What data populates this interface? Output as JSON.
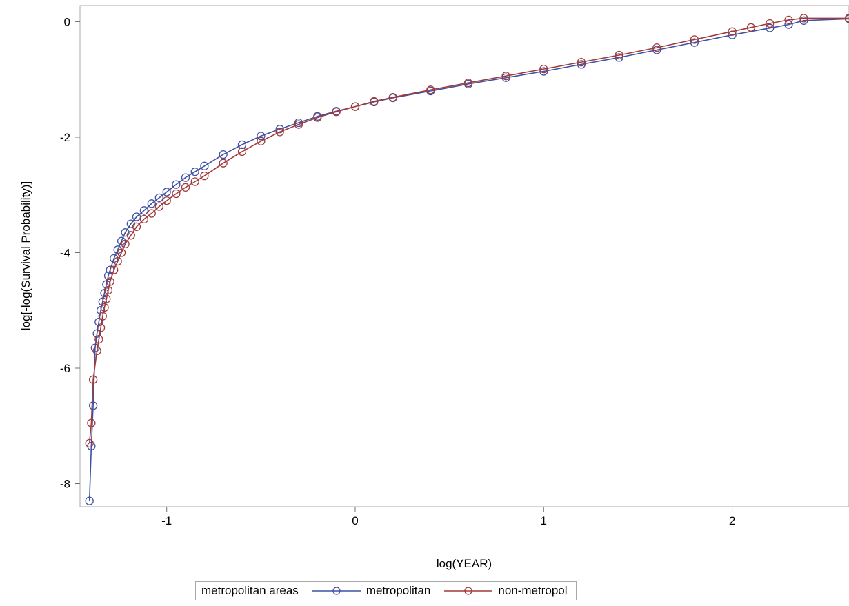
{
  "chart_data": {
    "type": "line",
    "xlabel": "log(YEAR)",
    "ylabel": "log[-log(Survival Probability)]",
    "xlim": [
      -1.46,
      2.62
    ],
    "ylim": [
      -8.4,
      0.28
    ],
    "xticks": [
      -1,
      0,
      1,
      2
    ],
    "yticks": [
      0,
      -2,
      -4,
      -6,
      -8
    ],
    "xtick_labels": [
      "-1",
      "0",
      "1",
      "2"
    ],
    "ytick_labels": [
      "0",
      "-2",
      "-4",
      "-6",
      "-8"
    ],
    "grid": false,
    "legend": {
      "position": "bottom",
      "title": "metropolitan areas"
    },
    "series": [
      {
        "name": "metropolitan",
        "color": "#3f51a3",
        "marker": "open-circle",
        "x": [
          -1.41,
          -1.4,
          -1.39,
          -1.38,
          -1.37,
          -1.36,
          -1.35,
          -1.34,
          -1.33,
          -1.32,
          -1.31,
          -1.3,
          -1.28,
          -1.26,
          -1.24,
          -1.22,
          -1.19,
          -1.16,
          -1.12,
          -1.08,
          -1.04,
          -1.0,
          -0.95,
          -0.9,
          -0.85,
          -0.8,
          -0.7,
          -0.6,
          -0.5,
          -0.4,
          -0.3,
          -0.2,
          -0.1,
          0.0,
          0.1,
          0.2,
          0.4,
          0.6,
          0.8,
          1.0,
          1.2,
          1.4,
          1.6,
          1.8,
          2.0,
          2.2,
          2.3,
          2.38,
          2.62
        ],
        "y": [
          -8.3,
          -7.35,
          -6.65,
          -5.65,
          -5.4,
          -5.2,
          -5.0,
          -4.85,
          -4.7,
          -4.55,
          -4.4,
          -4.3,
          -4.1,
          -3.95,
          -3.8,
          -3.65,
          -3.5,
          -3.38,
          -3.27,
          -3.15,
          -3.05,
          -2.95,
          -2.82,
          -2.7,
          -2.6,
          -2.5,
          -2.3,
          -2.13,
          -1.98,
          -1.86,
          -1.75,
          -1.64,
          -1.55,
          -1.47,
          -1.39,
          -1.32,
          -1.2,
          -1.08,
          -0.97,
          -0.86,
          -0.74,
          -0.62,
          -0.49,
          -0.36,
          -0.23,
          -0.11,
          -0.05,
          0.02,
          0.05
        ]
      },
      {
        "name": "non-metropol",
        "color": "#a23a3a",
        "marker": "open-circle",
        "x": [
          -1.41,
          -1.4,
          -1.39,
          -1.37,
          -1.36,
          -1.35,
          -1.34,
          -1.33,
          -1.32,
          -1.31,
          -1.3,
          -1.28,
          -1.26,
          -1.24,
          -1.22,
          -1.19,
          -1.16,
          -1.12,
          -1.08,
          -1.04,
          -1.0,
          -0.95,
          -0.9,
          -0.85,
          -0.8,
          -0.7,
          -0.6,
          -0.5,
          -0.4,
          -0.3,
          -0.2,
          -0.1,
          0.0,
          0.1,
          0.2,
          0.4,
          0.6,
          0.8,
          1.0,
          1.2,
          1.4,
          1.6,
          1.8,
          2.0,
          2.1,
          2.2,
          2.3,
          2.38,
          2.62
        ],
        "y": [
          -7.3,
          -6.95,
          -6.2,
          -5.7,
          -5.5,
          -5.3,
          -5.1,
          -4.95,
          -4.8,
          -4.65,
          -4.5,
          -4.3,
          -4.15,
          -4.0,
          -3.85,
          -3.7,
          -3.55,
          -3.42,
          -3.32,
          -3.2,
          -3.1,
          -2.98,
          -2.87,
          -2.77,
          -2.67,
          -2.45,
          -2.25,
          -2.07,
          -1.91,
          -1.78,
          -1.66,
          -1.56,
          -1.47,
          -1.38,
          -1.31,
          -1.18,
          -1.06,
          -0.94,
          -0.82,
          -0.7,
          -0.58,
          -0.45,
          -0.31,
          -0.17,
          -0.1,
          -0.03,
          0.03,
          0.06,
          0.06
        ]
      }
    ]
  }
}
